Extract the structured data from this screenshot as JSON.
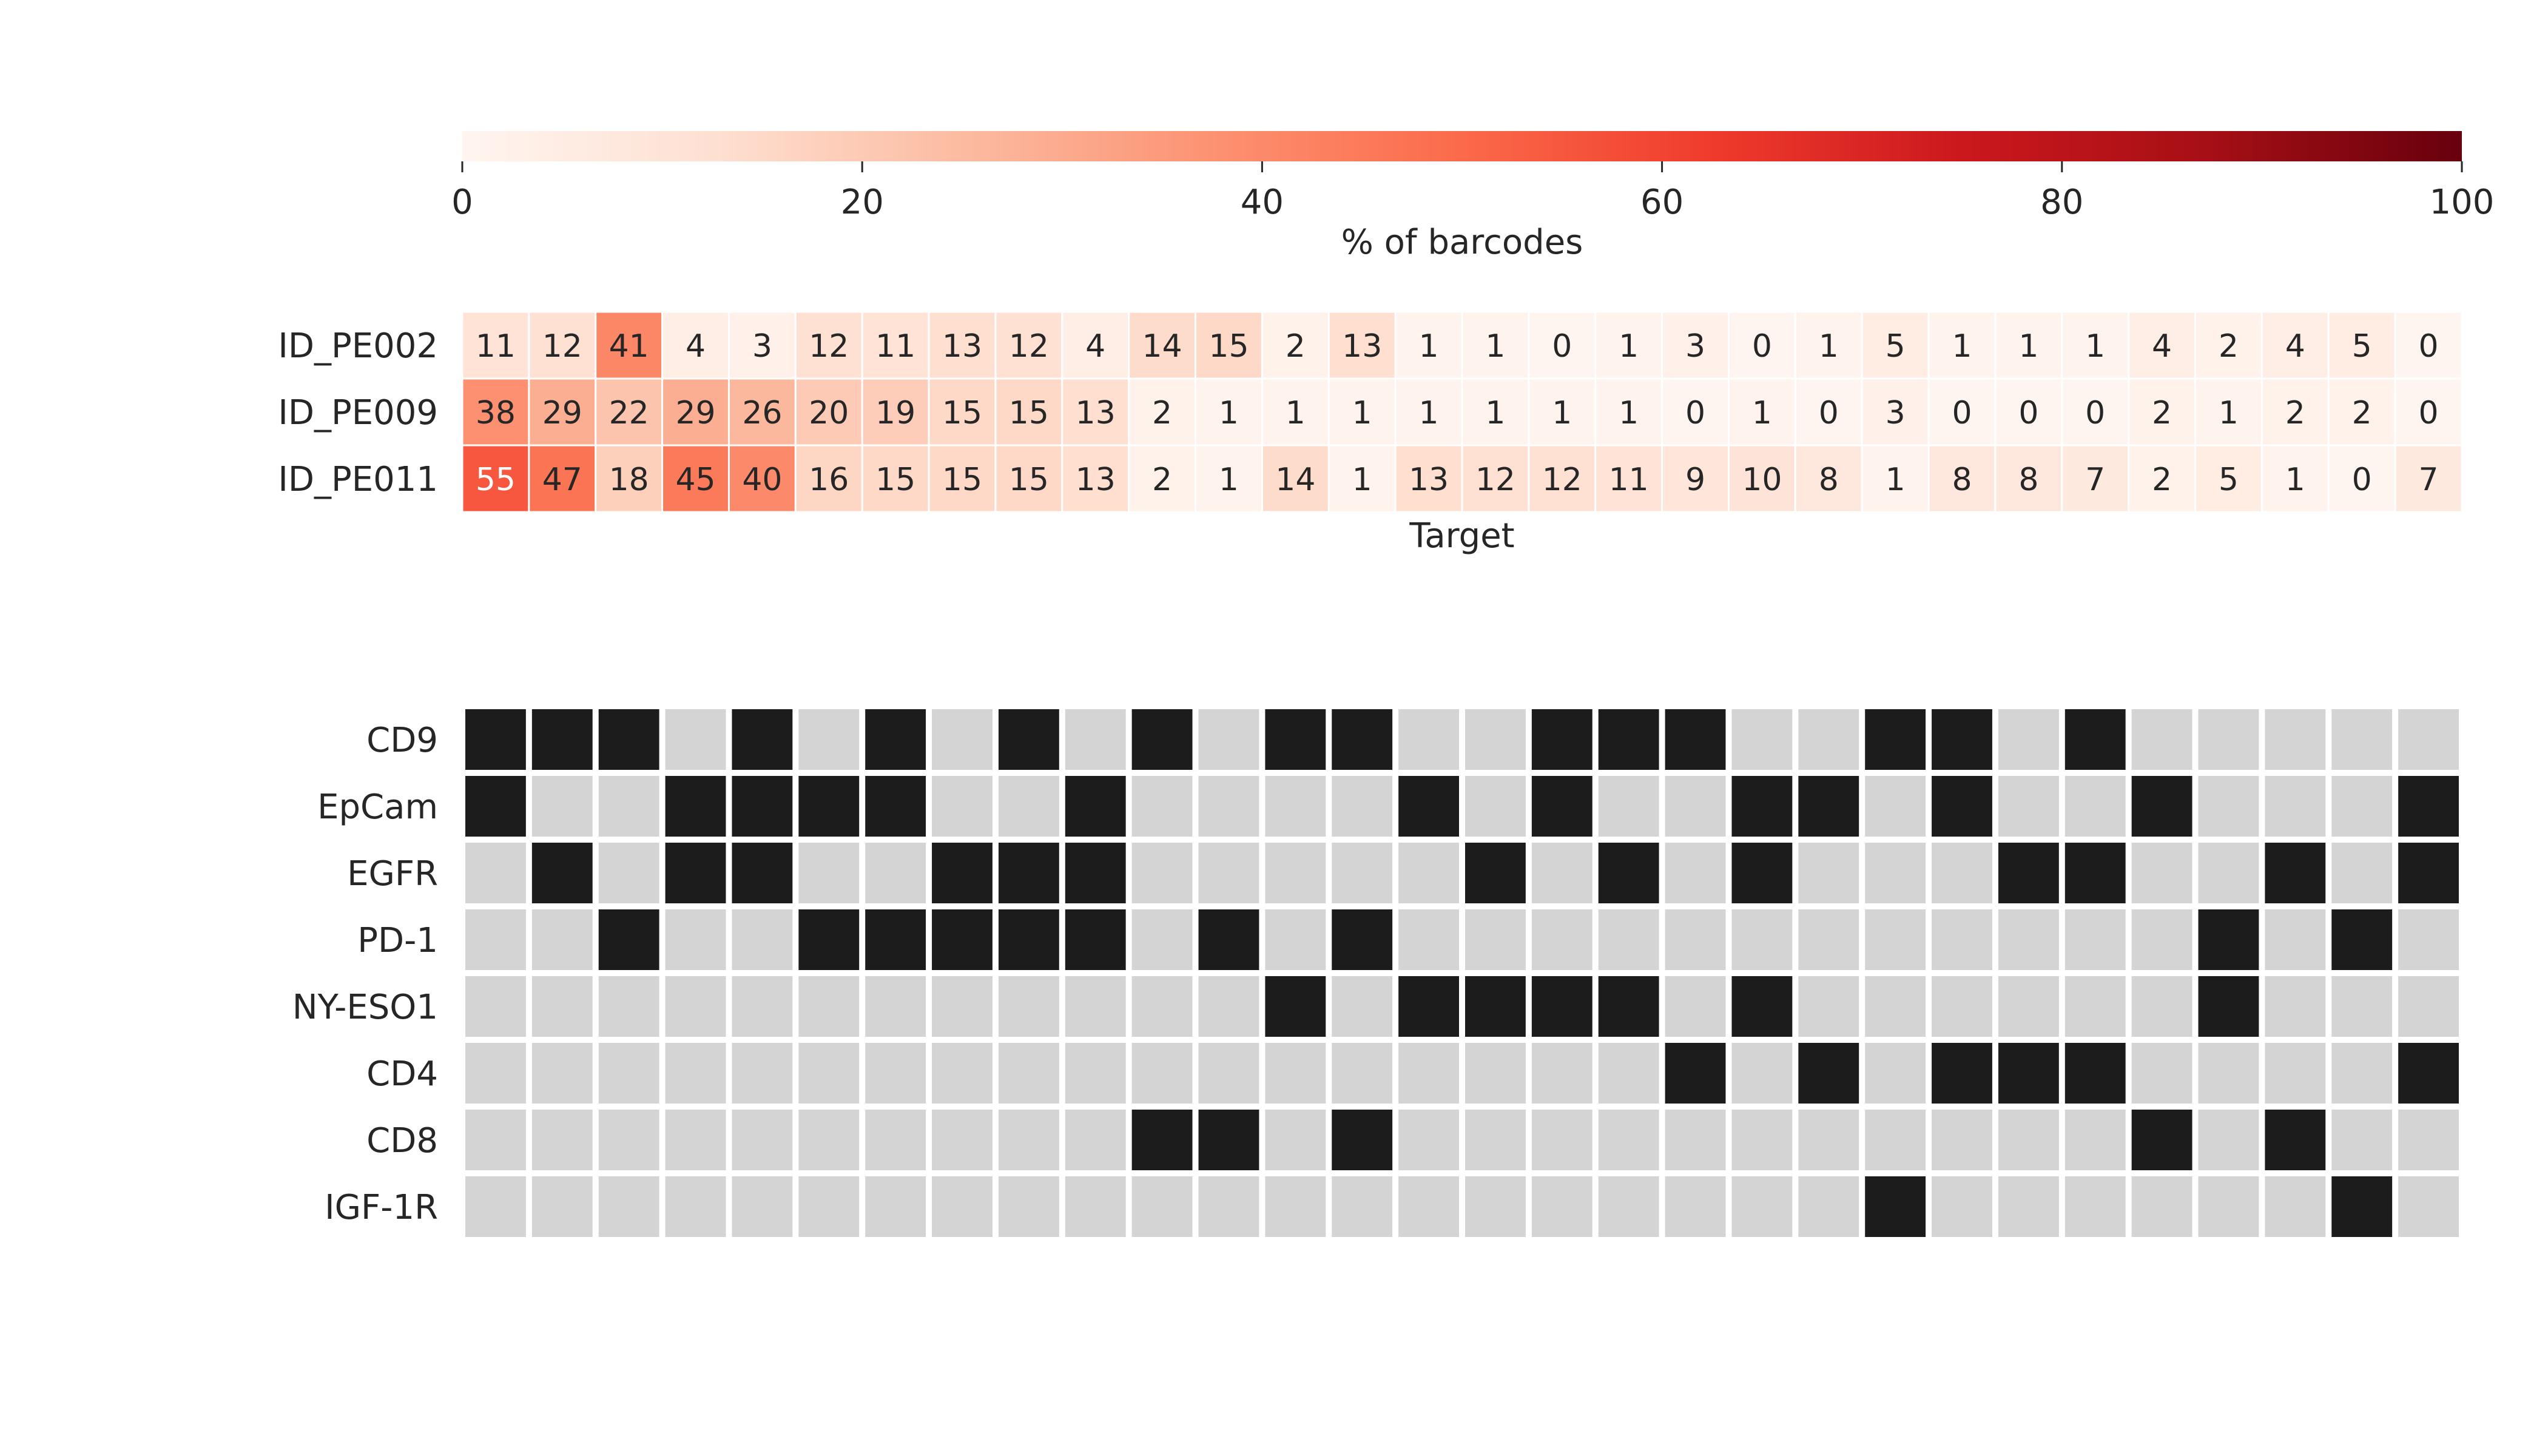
{
  "chart_data": [
    {
      "type": "heatmap",
      "title": "",
      "xlabel": "Target",
      "ylabel": "",
      "rows": [
        "ID_PE002",
        "ID_PE009",
        "ID_PE011"
      ],
      "values": [
        [
          11,
          12,
          41,
          4,
          3,
          12,
          11,
          13,
          12,
          4,
          14,
          15,
          2,
          13,
          1,
          1,
          0,
          1,
          3,
          0,
          1,
          5,
          1,
          1,
          1,
          4,
          2,
          4,
          5,
          0
        ],
        [
          38,
          29,
          22,
          29,
          26,
          20,
          19,
          15,
          15,
          13,
          2,
          1,
          1,
          1,
          1,
          1,
          1,
          1,
          0,
          1,
          0,
          3,
          0,
          0,
          0,
          2,
          1,
          2,
          2,
          0
        ],
        [
          55,
          47,
          18,
          45,
          40,
          16,
          15,
          15,
          15,
          13,
          2,
          1,
          14,
          1,
          13,
          12,
          12,
          11,
          9,
          10,
          8,
          1,
          8,
          8,
          7,
          2,
          5,
          1,
          0,
          7
        ]
      ],
      "colorbar": {
        "label": "% of barcodes",
        "range": [
          0,
          100
        ],
        "ticks": [
          0,
          20,
          40,
          60,
          80,
          100
        ],
        "colormap": "Reds",
        "orientation": "horizontal"
      },
      "annotations": "cell values printed in each cell"
    },
    {
      "type": "heatmap",
      "title": "",
      "xlabel": "",
      "ylabel": "",
      "rows": [
        "CD9",
        "EpCam",
        "EGFR",
        "PD-1",
        "NY-ESO1",
        "CD4",
        "CD8",
        "IGF-1R"
      ],
      "values": [
        [
          1,
          1,
          1,
          0,
          1,
          0,
          1,
          0,
          1,
          0,
          1,
          0,
          1,
          1,
          0,
          0,
          1,
          1,
          1,
          0,
          0,
          1,
          1,
          0,
          1,
          0,
          0,
          0,
          0,
          0
        ],
        [
          1,
          0,
          0,
          1,
          1,
          1,
          1,
          0,
          0,
          1,
          0,
          0,
          0,
          0,
          1,
          0,
          1,
          0,
          0,
          1,
          1,
          0,
          1,
          0,
          0,
          1,
          0,
          0,
          0,
          1
        ],
        [
          0,
          1,
          0,
          1,
          1,
          0,
          0,
          1,
          1,
          1,
          0,
          0,
          0,
          0,
          0,
          1,
          0,
          1,
          0,
          1,
          0,
          0,
          0,
          1,
          1,
          0,
          0,
          1,
          0,
          1
        ],
        [
          0,
          0,
          1,
          0,
          0,
          1,
          1,
          1,
          1,
          1,
          0,
          1,
          0,
          1,
          0,
          0,
          0,
          0,
          0,
          0,
          0,
          0,
          0,
          0,
          0,
          0,
          1,
          0,
          1,
          0
        ],
        [
          0,
          0,
          0,
          0,
          0,
          0,
          0,
          0,
          0,
          0,
          0,
          0,
          1,
          0,
          1,
          1,
          1,
          1,
          0,
          1,
          0,
          0,
          0,
          0,
          0,
          0,
          1,
          0,
          0,
          0
        ],
        [
          0,
          0,
          0,
          0,
          0,
          0,
          0,
          0,
          0,
          0,
          0,
          0,
          0,
          0,
          0,
          0,
          0,
          0,
          1,
          0,
          1,
          0,
          1,
          1,
          1,
          0,
          0,
          0,
          0,
          1
        ],
        [
          0,
          0,
          0,
          0,
          0,
          0,
          0,
          0,
          0,
          0,
          1,
          1,
          0,
          1,
          0,
          0,
          0,
          0,
          0,
          0,
          0,
          0,
          0,
          0,
          0,
          1,
          0,
          1,
          0,
          0
        ],
        [
          0,
          0,
          0,
          0,
          0,
          0,
          0,
          0,
          0,
          0,
          0,
          0,
          0,
          0,
          0,
          0,
          0,
          0,
          0,
          0,
          0,
          1,
          0,
          0,
          0,
          0,
          0,
          0,
          1,
          0
        ]
      ],
      "colors": {
        "present": "#1c1c1c",
        "absent": "#d4d4d4"
      }
    }
  ]
}
